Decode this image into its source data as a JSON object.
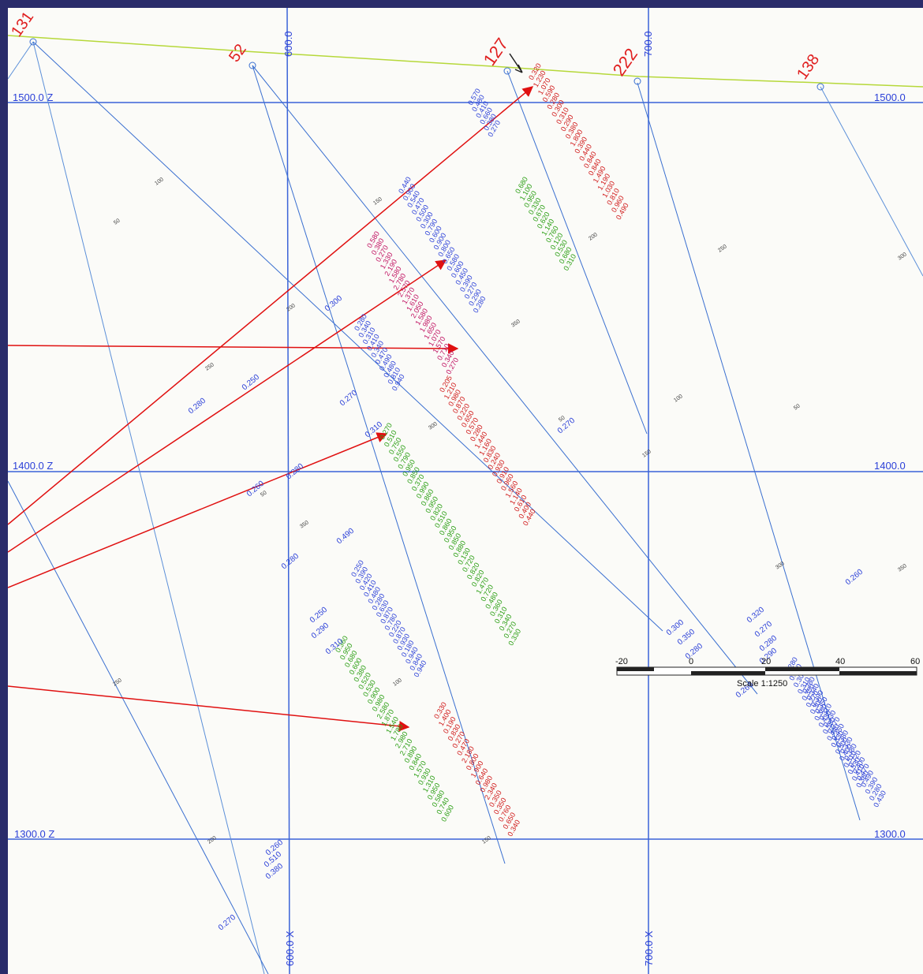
{
  "section": {
    "level_labels": [
      "1500.0 Z",
      "1400.0 Z",
      "1300.0 Z"
    ],
    "level_labels_right": [
      "1500.0",
      "1400.0",
      "1300.0"
    ],
    "easting_labels": [
      "600.0 X",
      "700.0 X"
    ],
    "easting_labels_top": [
      "600.0",
      "700.0"
    ]
  },
  "drillholes": [
    {
      "id": "131",
      "collar_label": "131"
    },
    {
      "id": "52",
      "collar_label": "52"
    },
    {
      "id": "127",
      "collar_label": "127"
    },
    {
      "id": "222",
      "collar_label": "222"
    },
    {
      "id": "138",
      "collar_label": "138"
    }
  ],
  "scale_bar": {
    "ticks": [
      "-20",
      "0",
      "20",
      "40",
      "60"
    ],
    "label": "Scale 1:1250"
  },
  "assay_columns": [
    {
      "color": "#2a3fd8",
      "values": [
        "0.570",
        "0.480",
        "0.410",
        "0.660",
        "0.380",
        "0.270"
      ]
    },
    {
      "color": "#d01818",
      "values": [
        "0.320",
        "1.230",
        "1.070",
        "0.590",
        "0.280",
        "0.300",
        "0.310",
        "0.290",
        "0.380",
        "1.800",
        "0.390",
        "0.440",
        "0.840",
        "0.840",
        "1.490",
        "1.190",
        "1.030",
        "0.810",
        "0.960",
        "0.490"
      ]
    },
    {
      "color": "#2a9e12",
      "values": [
        "0.680",
        "1.100",
        "0.950",
        "0.330",
        "0.670",
        "0.620",
        "1.140",
        "0.760",
        "0.120",
        "0.530",
        "0.680",
        "0.310"
      ]
    },
    {
      "color": "#2a3fd8",
      "values": [
        "0.440",
        "0.900",
        "0.540",
        "0.470",
        "0.500",
        "0.300",
        "0.790",
        "0.600",
        "0.900",
        "0.800",
        "0.650",
        "0.580",
        "0.600",
        "0.450",
        "0.390",
        "0.270",
        "0.290",
        "0.280"
      ]
    },
    {
      "color": "#c01060",
      "values": [
        "0.580",
        "0.380",
        "0.270",
        "1.330",
        "2.190",
        "1.580",
        "2.780",
        "2.570",
        "1.370",
        "1.610",
        "2.050",
        "1.580",
        "1.980",
        "1.650",
        "1.070",
        "1.570",
        "0.710",
        "0.340",
        "0.270"
      ]
    },
    {
      "color": "#2a3fd8",
      "values": [
        "0.280",
        "0.340",
        "0.310",
        "0.410",
        "0.340",
        "0.470",
        "0.490",
        "0.480",
        "0.810",
        "0.940"
      ]
    },
    {
      "color": "#d01818",
      "values": [
        "0.205",
        "1.210",
        "0.980",
        "0.870",
        "0.220",
        "0.650",
        "0.570",
        "0.280",
        "1.440",
        "1.160",
        "0.830",
        "0.240",
        "0.930",
        "0.910",
        "0.960",
        "1.560",
        "1.140",
        "0.610",
        "0.400",
        "0.440"
      ]
    },
    {
      "color": "#2a9e12",
      "values": [
        "0.270",
        "0.510",
        "0.750",
        "0.550",
        "0.790",
        "0.950",
        "0.850",
        "0.370",
        "0.990",
        "0.860",
        "0.950",
        "0.820",
        "0.510",
        "0.860",
        "0.950",
        "0.850",
        "0.880",
        "0.130",
        "0.720",
        "0.820",
        "0.820",
        "1.470",
        "0.720",
        "0.480",
        "0.360",
        "0.310",
        "0.340",
        "0.270",
        "0.330"
      ]
    },
    {
      "color": "#2a3fd8",
      "values": [
        "0.250",
        "0.390",
        "0.420",
        "0.410",
        "0.480",
        "0.280",
        "0.630",
        "0.870",
        "0.780",
        "0.220",
        "0.870",
        "0.930",
        "0.180",
        "0.940",
        "0.840",
        "0.940"
      ]
    },
    {
      "color": "#d01818",
      "values": [
        "0.330",
        "1.400",
        "0.190",
        "0.830",
        "0.270",
        "0.470",
        "2.180",
        "0.800",
        "1.900",
        "0.640",
        "0.980",
        "2.340",
        "0.350",
        "0.350",
        "0.760",
        "0.650",
        "0.340"
      ]
    },
    {
      "color": "#2a9e12",
      "values": [
        "0.360",
        "0.950",
        "0.680",
        "0.600",
        "0.380",
        "0.520",
        "0.530",
        "0.900",
        "0.980",
        "2.580",
        "1.870",
        "1.540",
        "1.780",
        "2.980",
        "2.710",
        "0.890",
        "0.840",
        "1.570",
        "0.930",
        "1.310",
        "0.950",
        "0.580",
        "0.740",
        "0.600"
      ]
    },
    {
      "color": "#2a3fd8",
      "values": [
        "0.280",
        "0.340",
        "0.390",
        "0.350",
        "0.310",
        "0.330",
        "0.270",
        "0.450",
        "0.380",
        "0.330",
        "0.380",
        "0.720",
        "0.400",
        "0.470",
        "0.490",
        "0.390",
        "0.280",
        "0.430"
      ]
    },
    {
      "color": "#2a3fd8",
      "values": [
        "0.280",
        "0.440",
        "0.300",
        "0.310",
        "0.350",
        "0.270",
        "0.300",
        "0.380",
        "0.430",
        "0.550",
        "0.440",
        "0.330",
        "0.500",
        "0.400",
        "0.510",
        "0.530",
        "0.410",
        "0.380"
      ]
    }
  ],
  "loose_values": [
    "0.300",
    "0.250",
    "0.280",
    "0.270",
    "0.310",
    "0.280",
    "0.260",
    "0.490",
    "0.280",
    "0.250",
    "0.290",
    "0.310",
    "0.260",
    "0.320",
    "0.270",
    "0.280",
    "0.290",
    "0.300",
    "0.350",
    "0.280",
    "0.260",
    "0.270",
    "0.260",
    "0.510",
    "0.380",
    "0.270"
  ],
  "depth_ticks": [
    "50",
    "100",
    "150",
    "200",
    "250",
    "300",
    "350"
  ]
}
